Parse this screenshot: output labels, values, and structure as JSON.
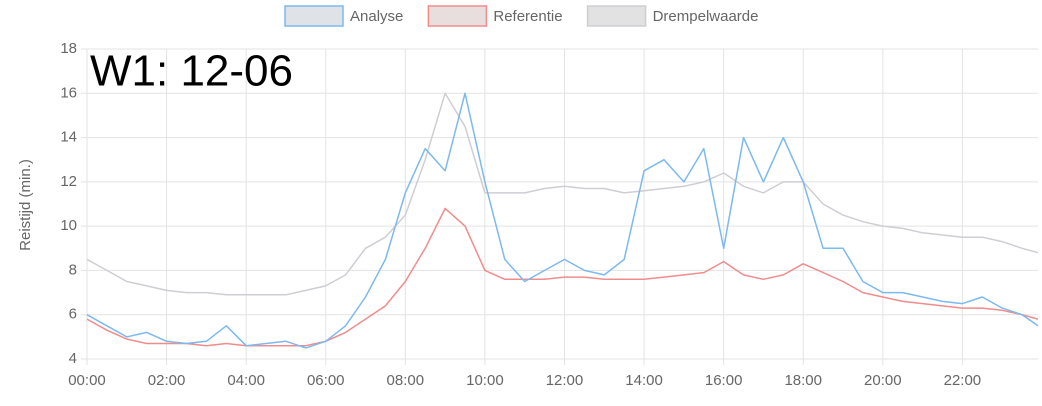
{
  "chart_data": {
    "type": "line",
    "annotation": "W1: 12-06",
    "y_label": "Reistijd (min.)",
    "legend": "top",
    "grid": true,
    "x": [
      0,
      0.5,
      1,
      1.5,
      2,
      2.5,
      3,
      3.5,
      4,
      4.5,
      5,
      5.5,
      6,
      6.5,
      7,
      7.5,
      8,
      8.5,
      9,
      9.5,
      10,
      10.5,
      11,
      11.5,
      12,
      12.5,
      13,
      13.5,
      14,
      14.5,
      15,
      15.5,
      16,
      16.5,
      17,
      17.5,
      18,
      18.5,
      19,
      19.5,
      20,
      20.5,
      21,
      21.5,
      22,
      22.5,
      23,
      23.5,
      23.9
    ],
    "xlim": [
      0,
      23.9
    ],
    "xticks": [
      {
        "value": 0,
        "label": "00:00"
      },
      {
        "value": 2,
        "label": "02:00"
      },
      {
        "value": 4,
        "label": "04:00"
      },
      {
        "value": 6,
        "label": "06:00"
      },
      {
        "value": 8,
        "label": "08:00"
      },
      {
        "value": 10,
        "label": "10:00"
      },
      {
        "value": 12,
        "label": "12:00"
      },
      {
        "value": 14,
        "label": "14:00"
      },
      {
        "value": 16,
        "label": "16:00"
      },
      {
        "value": 18,
        "label": "18:00"
      },
      {
        "value": 20,
        "label": "20:00"
      },
      {
        "value": 22,
        "label": "22:00"
      }
    ],
    "ylim": [
      4,
      18
    ],
    "yticks": [
      4,
      6,
      8,
      10,
      12,
      14,
      16,
      18
    ],
    "series": [
      {
        "name": "Analyse",
        "color": "#7cb9ef",
        "fill": "#dfe3e8",
        "values": [
          6.0,
          5.5,
          5.0,
          5.2,
          4.8,
          4.7,
          4.8,
          5.5,
          4.6,
          4.7,
          4.8,
          4.5,
          4.8,
          5.5,
          6.8,
          8.5,
          11.5,
          13.5,
          12.5,
          16,
          12,
          8.5,
          7.5,
          8,
          8.5,
          8,
          7.8,
          8.5,
          12.5,
          13,
          12,
          13.5,
          9,
          14,
          12,
          14,
          12,
          9,
          9,
          7.5,
          7,
          7,
          6.8,
          6.6,
          6.5,
          6.8,
          6.3,
          6,
          5.5
        ]
      },
      {
        "name": "Referentie",
        "color": "#f08c8c",
        "fill": "#e8dede",
        "values": [
          5.8,
          5.3,
          4.9,
          4.7,
          4.7,
          4.7,
          4.6,
          4.7,
          4.6,
          4.6,
          4.6,
          4.6,
          4.8,
          5.2,
          5.8,
          6.4,
          7.5,
          9,
          10.8,
          10,
          8,
          7.6,
          7.6,
          7.6,
          7.7,
          7.7,
          7.6,
          7.6,
          7.6,
          7.7,
          7.8,
          7.9,
          8.4,
          7.8,
          7.6,
          7.8,
          8.3,
          7.9,
          7.5,
          7.0,
          6.8,
          6.6,
          6.5,
          6.4,
          6.3,
          6.3,
          6.2,
          6.0,
          5.8
        ]
      },
      {
        "name": "Drempelwaarde",
        "color": "#cfcdd3",
        "fill": "#e2e2e2",
        "values": [
          8.5,
          8.0,
          7.5,
          7.3,
          7.1,
          7.0,
          7.0,
          6.9,
          6.9,
          6.9,
          6.9,
          7.1,
          7.3,
          7.8,
          9,
          9.5,
          10.5,
          13,
          16,
          14.5,
          11.5,
          11.5,
          11.5,
          11.7,
          11.8,
          11.7,
          11.7,
          11.5,
          11.6,
          11.7,
          11.8,
          12,
          12.4,
          11.8,
          11.5,
          12,
          12,
          11,
          10.5,
          10.2,
          10,
          9.9,
          9.7,
          9.6,
          9.5,
          9.5,
          9.3,
          9,
          8.8
        ]
      }
    ]
  }
}
